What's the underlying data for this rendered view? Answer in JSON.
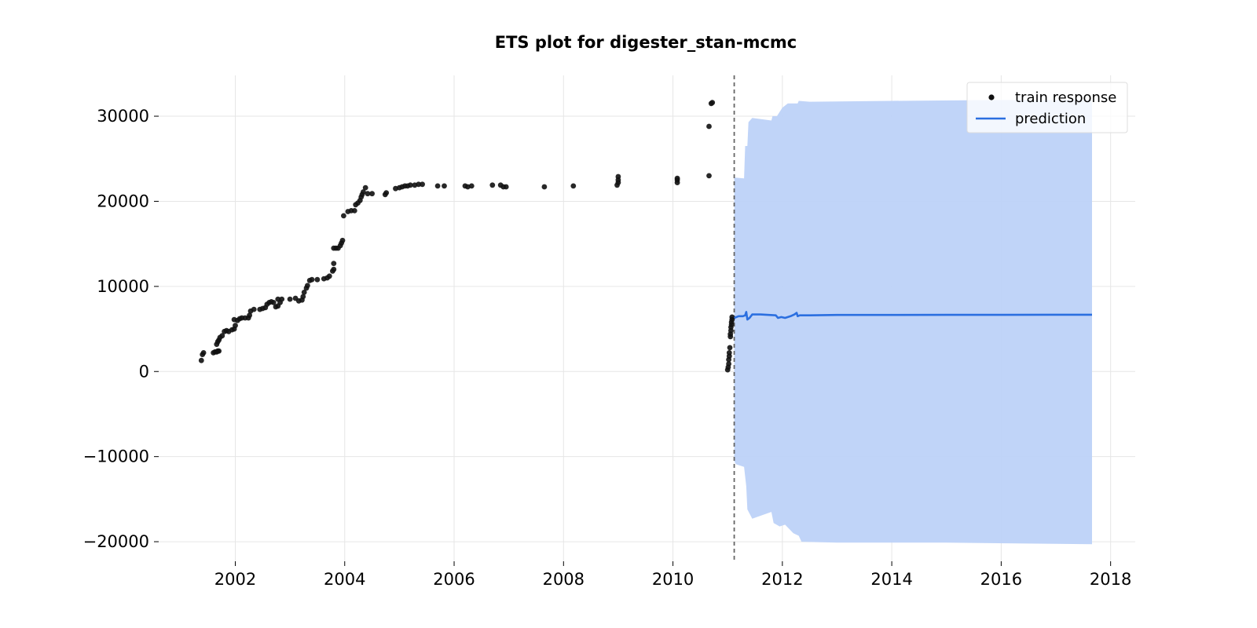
{
  "chart_data": {
    "type": "scatter",
    "title": "ETS plot for digester_stan-mcmc",
    "xlabel": "",
    "ylabel": "",
    "xlim": [
      2000.6,
      2018.45
    ],
    "ylim": [
      -22300,
      34800
    ],
    "x_ticks": [
      2002,
      2004,
      2006,
      2008,
      2010,
      2012,
      2014,
      2016,
      2018
    ],
    "y_ticks": [
      -20000,
      -10000,
      0,
      10000,
      20000,
      30000
    ],
    "y_tick_labels": [
      "−20000",
      "−10000",
      "0",
      "10000",
      "20000",
      "30000"
    ],
    "grid": true,
    "legend_position": "top-right",
    "train_cutoff_x": 2011.12,
    "colors": {
      "train": "#111111",
      "prediction": "#2b6fe0",
      "interval": "#bdd2f8",
      "cutoff": "#666666",
      "grid": "#e6e6e6"
    },
    "series": [
      {
        "name": "train response",
        "kind": "scatter",
        "points": [
          [
            2001.38,
            1300
          ],
          [
            2001.4,
            2000
          ],
          [
            2001.42,
            2200
          ],
          [
            2001.6,
            2200
          ],
          [
            2001.63,
            2300
          ],
          [
            2001.66,
            2300
          ],
          [
            2001.68,
            2400
          ],
          [
            2001.7,
            2400
          ],
          [
            2001.66,
            3200
          ],
          [
            2001.68,
            3500
          ],
          [
            2001.7,
            3700
          ],
          [
            2001.72,
            4000
          ],
          [
            2001.76,
            4200
          ],
          [
            2001.8,
            4700
          ],
          [
            2001.84,
            4800
          ],
          [
            2001.88,
            4700
          ],
          [
            2001.94,
            4900
          ],
          [
            2001.98,
            5000
          ],
          [
            2002.0,
            5400
          ],
          [
            2001.98,
            6100
          ],
          [
            2002.04,
            6000
          ],
          [
            2002.08,
            6200
          ],
          [
            2002.12,
            6300
          ],
          [
            2002.18,
            6300
          ],
          [
            2002.24,
            6300
          ],
          [
            2002.26,
            6600
          ],
          [
            2002.28,
            7100
          ],
          [
            2002.34,
            7300
          ],
          [
            2002.45,
            7300
          ],
          [
            2002.5,
            7400
          ],
          [
            2002.55,
            7500
          ],
          [
            2002.58,
            7900
          ],
          [
            2002.62,
            8100
          ],
          [
            2002.66,
            8200
          ],
          [
            2002.7,
            8100
          ],
          [
            2002.74,
            7600
          ],
          [
            2002.78,
            7700
          ],
          [
            2002.82,
            8100
          ],
          [
            2002.78,
            8500
          ],
          [
            2002.85,
            8500
          ],
          [
            2003.0,
            8500
          ],
          [
            2003.1,
            8600
          ],
          [
            2003.16,
            8300
          ],
          [
            2003.22,
            8400
          ],
          [
            2003.24,
            8800
          ],
          [
            2003.26,
            9300
          ],
          [
            2003.3,
            9800
          ],
          [
            2003.32,
            10100
          ],
          [
            2003.36,
            10700
          ],
          [
            2003.4,
            10800
          ],
          [
            2003.5,
            10800
          ],
          [
            2003.62,
            10900
          ],
          [
            2003.68,
            11000
          ],
          [
            2003.72,
            11200
          ],
          [
            2003.78,
            11800
          ],
          [
            2003.8,
            12000
          ],
          [
            2003.8,
            12700
          ],
          [
            2003.8,
            14500
          ],
          [
            2003.84,
            14500
          ],
          [
            2003.88,
            14500
          ],
          [
            2003.92,
            14800
          ],
          [
            2003.94,
            15100
          ],
          [
            2003.96,
            15400
          ],
          [
            2003.98,
            18300
          ],
          [
            2004.06,
            18800
          ],
          [
            2004.12,
            18900
          ],
          [
            2004.18,
            18900
          ],
          [
            2004.2,
            19600
          ],
          [
            2004.24,
            19800
          ],
          [
            2004.28,
            20100
          ],
          [
            2004.3,
            20500
          ],
          [
            2004.32,
            20800
          ],
          [
            2004.34,
            21100
          ],
          [
            2004.38,
            21600
          ],
          [
            2004.42,
            20900
          ],
          [
            2004.5,
            20900
          ],
          [
            2004.74,
            20800
          ],
          [
            2004.76,
            21000
          ],
          [
            2004.93,
            21500
          ],
          [
            2005.0,
            21600
          ],
          [
            2005.05,
            21700
          ],
          [
            2005.1,
            21800
          ],
          [
            2005.15,
            21800
          ],
          [
            2005.2,
            21900
          ],
          [
            2005.28,
            21900
          ],
          [
            2005.35,
            22000
          ],
          [
            2005.42,
            22000
          ],
          [
            2005.7,
            21800
          ],
          [
            2005.82,
            21800
          ],
          [
            2006.2,
            21800
          ],
          [
            2006.25,
            21700
          ],
          [
            2006.32,
            21800
          ],
          [
            2006.7,
            21900
          ],
          [
            2006.85,
            21900
          ],
          [
            2006.9,
            21700
          ],
          [
            2006.95,
            21700
          ],
          [
            2007.65,
            21700
          ],
          [
            2008.18,
            21800
          ],
          [
            2008.98,
            21900
          ],
          [
            2009.0,
            22200
          ],
          [
            2009.0,
            22500
          ],
          [
            2009.0,
            22900
          ],
          [
            2010.08,
            22200
          ],
          [
            2010.08,
            22500
          ],
          [
            2010.08,
            22700
          ],
          [
            2010.66,
            28800
          ],
          [
            2010.66,
            23000
          ],
          [
            2010.7,
            31500
          ],
          [
            2010.72,
            31600
          ],
          [
            2011.0,
            200
          ],
          [
            2011.01,
            500
          ],
          [
            2011.02,
            900
          ],
          [
            2011.02,
            1400
          ],
          [
            2011.03,
            1800
          ],
          [
            2011.03,
            2200
          ],
          [
            2011.04,
            2800
          ],
          [
            2011.05,
            4100
          ],
          [
            2011.05,
            4400
          ],
          [
            2011.06,
            4800
          ],
          [
            2011.06,
            5200
          ],
          [
            2011.07,
            5500
          ],
          [
            2011.07,
            5800
          ],
          [
            2011.08,
            6100
          ],
          [
            2011.08,
            6400
          ]
        ]
      },
      {
        "name": "prediction",
        "kind": "line",
        "points": [
          [
            2011.12,
            6300
          ],
          [
            2011.2,
            6500
          ],
          [
            2011.28,
            6500
          ],
          [
            2011.32,
            6600
          ],
          [
            2011.34,
            7000
          ],
          [
            2011.36,
            6100
          ],
          [
            2011.4,
            6300
          ],
          [
            2011.45,
            6700
          ],
          [
            2011.6,
            6700
          ],
          [
            2011.88,
            6600
          ],
          [
            2011.92,
            6300
          ],
          [
            2011.98,
            6400
          ],
          [
            2012.05,
            6300
          ],
          [
            2012.15,
            6500
          ],
          [
            2012.22,
            6700
          ],
          [
            2012.26,
            6900
          ],
          [
            2012.28,
            6500
          ],
          [
            2012.32,
            6600
          ],
          [
            2012.5,
            6600
          ],
          [
            2013.0,
            6650
          ],
          [
            2014.0,
            6650
          ],
          [
            2015.0,
            6660
          ],
          [
            2016.0,
            6660
          ],
          [
            2017.0,
            6670
          ],
          [
            2017.66,
            6670
          ]
        ]
      }
    ],
    "interval": {
      "upper": [
        [
          2011.12,
          22800
        ],
        [
          2011.3,
          22700
        ],
        [
          2011.32,
          26500
        ],
        [
          2011.36,
          26500
        ],
        [
          2011.38,
          29300
        ],
        [
          2011.45,
          29800
        ],
        [
          2011.8,
          29500
        ],
        [
          2011.82,
          30000
        ],
        [
          2011.9,
          30000
        ],
        [
          2012.0,
          31000
        ],
        [
          2012.1,
          31500
        ],
        [
          2012.28,
          31500
        ],
        [
          2012.3,
          31800
        ],
        [
          2012.5,
          31700
        ],
        [
          2014.0,
          31800
        ],
        [
          2016.0,
          31900
        ],
        [
          2017.66,
          31900
        ]
      ],
      "lower": [
        [
          2011.12,
          -10500
        ],
        [
          2011.15,
          -10900
        ],
        [
          2011.3,
          -11200
        ],
        [
          2011.34,
          -13500
        ],
        [
          2011.36,
          -16200
        ],
        [
          2011.45,
          -17300
        ],
        [
          2011.8,
          -16500
        ],
        [
          2011.84,
          -17800
        ],
        [
          2011.95,
          -18200
        ],
        [
          2012.05,
          -18000
        ],
        [
          2012.2,
          -19000
        ],
        [
          2012.3,
          -19300
        ],
        [
          2012.35,
          -20000
        ],
        [
          2013.0,
          -20100
        ],
        [
          2015.0,
          -20100
        ],
        [
          2017.66,
          -20300
        ]
      ]
    }
  }
}
